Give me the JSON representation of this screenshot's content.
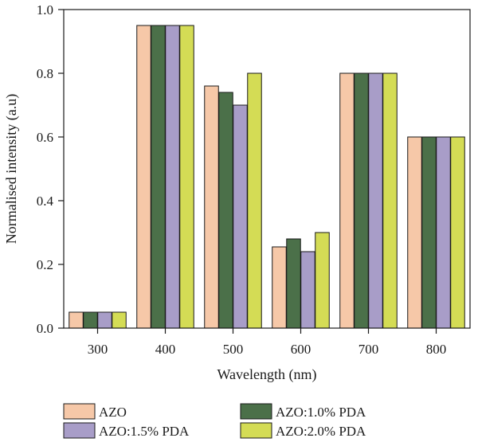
{
  "chart_data": {
    "type": "bar",
    "xlabel": "Wavelength (nm)",
    "ylabel": "Normalised intensity (a.u)",
    "categories": [
      "300",
      "400",
      "500",
      "600",
      "700",
      "800"
    ],
    "ylim": [
      0,
      1.0
    ],
    "yticks": [
      "0.0",
      "0.2",
      "0.4",
      "0.6",
      "0.8",
      "1.0"
    ],
    "grid": false,
    "legend_position": "bottom",
    "series": [
      {
        "name": "AZO",
        "color": "#f6c8a8",
        "values": [
          0.05,
          0.95,
          0.76,
          0.255,
          0.8,
          0.6
        ]
      },
      {
        "name": "AZO:1.0% PDA",
        "color": "#4b7049",
        "values": [
          0.05,
          0.95,
          0.74,
          0.28,
          0.8,
          0.6
        ]
      },
      {
        "name": "AZO:1.5% PDA",
        "color": "#a89dc8",
        "values": [
          0.05,
          0.95,
          0.7,
          0.24,
          0.8,
          0.6
        ]
      },
      {
        "name": "AZO:2.0% PDA",
        "color": "#d4dc55",
        "values": [
          0.05,
          0.95,
          0.8,
          0.3,
          0.8,
          0.6
        ]
      }
    ]
  }
}
